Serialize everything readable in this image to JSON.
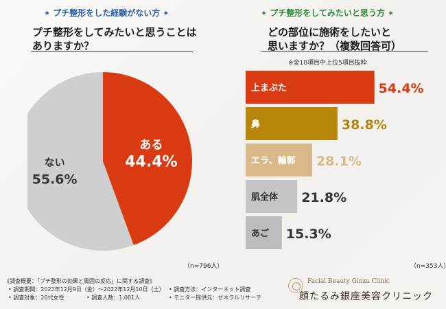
{
  "left_panel": {
    "tag": "プチ整形をした経験がない方",
    "question_line1": "プチ整形をしてみたいと思うことは",
    "question_line2": "ありますか？",
    "n_label": "（n=796人）"
  },
  "right_panel": {
    "tag": "プチ整形をしてみたいと思う方",
    "question_line1": "どの部位に施術をしたいと",
    "question_line2": "思いますか？（複数回答可）",
    "note": "※全10項目中上位5項目抜粋",
    "n_label": "（n=353人）"
  },
  "chart_data": [
    {
      "type": "pie",
      "categories": [
        "ある",
        "ない"
      ],
      "values": [
        44.4,
        55.6
      ],
      "value_labels": [
        "44.4%",
        "55.6%"
      ],
      "colors": [
        "#d93a12",
        "#cfcfcf"
      ],
      "label_colors": [
        "#ffffff",
        "#333333"
      ]
    },
    {
      "type": "bar",
      "orientation": "horizontal",
      "categories": [
        "上まぶた",
        "鼻",
        "エラ、輪郭",
        "肌全体",
        "あご"
      ],
      "values": [
        54.4,
        38.8,
        28.1,
        21.8,
        15.3
      ],
      "value_labels": [
        "54.4%",
        "38.8%",
        "28.1%",
        "21.8%",
        "15.3%"
      ],
      "colors": [
        "#d93a12",
        "#b8860b",
        "#d9b98a",
        "#c5c5c5",
        "#bcbcbc"
      ],
      "label_text_colors": [
        "#ffffff",
        "#ffffff",
        "#ffffff",
        "#333333",
        "#333333"
      ],
      "value_text_colors": [
        "#d93a12",
        "#b8860b",
        "#d9b98a",
        "#333333",
        "#333333"
      ],
      "xlim": [
        0,
        60
      ]
    }
  ],
  "footer": {
    "survey_title": "《調査概要：「プチ整形の効果と周囲の反応」に関する調査》",
    "period": "• 調査期間：2022年12月9日（金）〜2022年12月10日（土）",
    "method": "• 調査方法：インターネット調査",
    "target": "• 調査対象：20代女性",
    "count": "• 調査人数：1,001人",
    "provider": "• モニター提供元：ゼネラルリサーチ",
    "logo_en": "Facial Beauty Ginza Clinic",
    "logo_ja": "顔たるみ銀座美容クリニック"
  }
}
